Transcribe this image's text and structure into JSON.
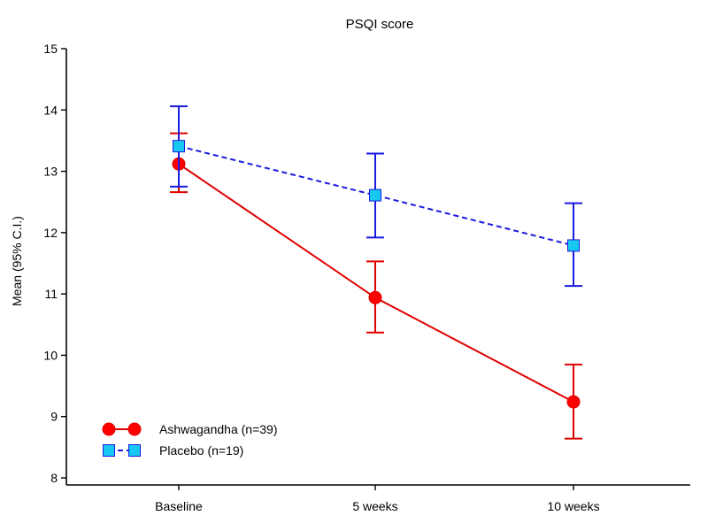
{
  "chart_data": {
    "type": "line",
    "title": "PSQI score",
    "xlabel": "",
    "ylabel": "Mean (95% C.I.)",
    "categories": [
      "Baseline",
      "5 weeks",
      "10 weeks"
    ],
    "ylim": [
      8,
      15
    ],
    "yticks": [
      8,
      9,
      10,
      11,
      12,
      13,
      14,
      15
    ],
    "grid": false,
    "legend_position": "bottom-left",
    "series": [
      {
        "name": "Ashwagandha (n=39)",
        "values": [
          13.12,
          10.94,
          9.24
        ],
        "ci_lower": [
          12.66,
          10.37,
          8.64
        ],
        "ci_upper": [
          13.62,
          11.53,
          9.85
        ],
        "color": "#e00000",
        "marker_fill": "#ff0000",
        "marker": "circle",
        "line_style": "solid"
      },
      {
        "name": "Placebo (n=19)",
        "values": [
          13.41,
          12.61,
          11.79
        ],
        "ci_lower": [
          12.75,
          11.92,
          11.13
        ],
        "ci_upper": [
          14.06,
          13.29,
          12.48
        ],
        "color": "#1a1ae0",
        "marker_fill": "#18c8f0",
        "marker": "square",
        "line_style": "dashed"
      }
    ]
  }
}
